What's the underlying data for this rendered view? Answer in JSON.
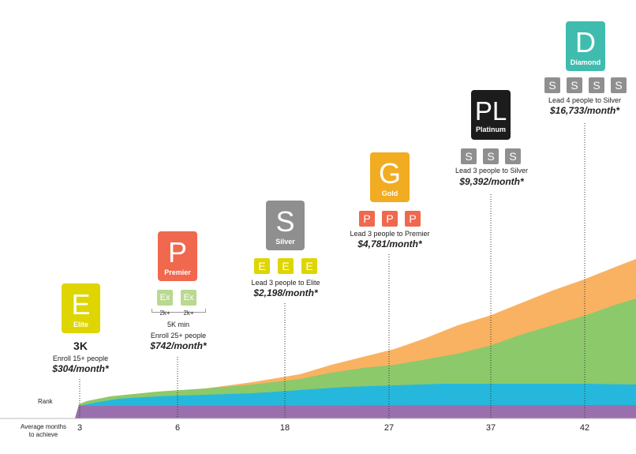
{
  "colors": {
    "elite": "#dfd500",
    "premier": "#f0684d",
    "silver": "#8f8f8f",
    "gold": "#f1ac22",
    "platinum": "#1c1c1c",
    "diamond": "#3fbcae",
    "executive": "#b9d98f",
    "layer_purple": "#9a6fae",
    "layer_blue": "#25b8dc",
    "layer_green": "#8cc96b",
    "layer_orange": "#f9b262"
  },
  "axis": {
    "rank_label": "Rank",
    "x_label_line1": "Average months",
    "x_label_line2": "to achieve"
  },
  "ranks": [
    {
      "key": "elite",
      "letter": "E",
      "name": "Elite",
      "month": "3",
      "volume": "3K",
      "requirement": "Enroll 15+ people",
      "earnings": "$304/month*"
    },
    {
      "key": "premier",
      "letter": "P",
      "name": "Premier",
      "month": "6",
      "chips": [
        "Ex",
        "Ex"
      ],
      "chip_volumes": [
        "2k+",
        "2k+"
      ],
      "min_volume": "5K min",
      "requirement": "Enroll 25+ people",
      "earnings": "$742/month*"
    },
    {
      "key": "silver",
      "letter": "S",
      "name": "Silver",
      "month": "18",
      "chips": [
        "E",
        "E",
        "E"
      ],
      "requirement": "Lead 3 people to Elite",
      "earnings": "$2,198/month*"
    },
    {
      "key": "gold",
      "letter": "G",
      "name": "Gold",
      "month": "27",
      "chips": [
        "P",
        "P",
        "P"
      ],
      "requirement": "Lead 3 people to Premier",
      "earnings": "$4,781/month*"
    },
    {
      "key": "platinum",
      "letter": "PL",
      "name": "Platinum",
      "month": "37",
      "chips": [
        "S",
        "S",
        "S"
      ],
      "requirement": "Lead 3 people to Silver",
      "earnings": "$9,392/month*"
    },
    {
      "key": "diamond",
      "letter": "D",
      "name": "Diamond",
      "month": "42",
      "chips": [
        "S",
        "S",
        "S",
        "S"
      ],
      "requirement": "Lead 4 people to Silver",
      "earnings": "$16,733/month*"
    }
  ]
}
